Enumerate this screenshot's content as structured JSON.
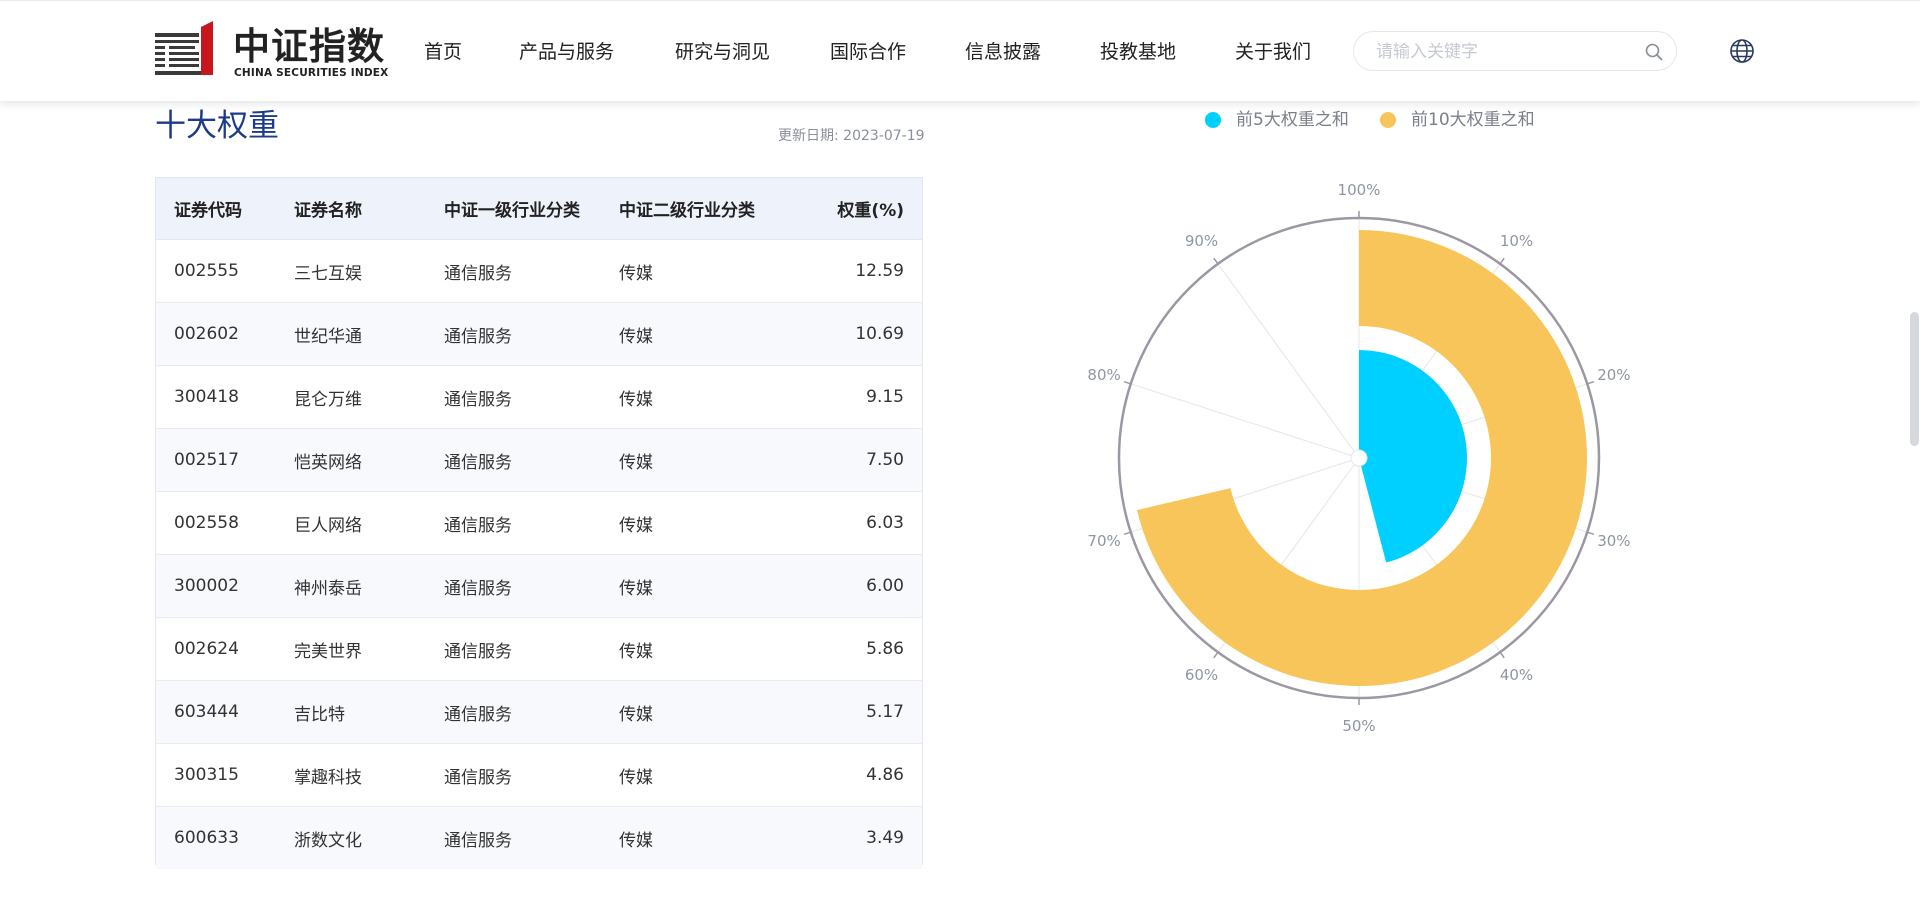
{
  "header": {
    "logo": {
      "cn": "中证指数",
      "en": "CHINA SECURITIES INDEX"
    },
    "nav": [
      "首页",
      "产品与服务",
      "研究与洞见",
      "国际合作",
      "信息披露",
      "投教基地",
      "关于我们"
    ],
    "search": {
      "placeholder": "请输入关键字",
      "value": ""
    },
    "icons": {
      "search": "search-icon",
      "language": "globe-icon"
    }
  },
  "section": {
    "title": "十大权重",
    "update_date": "更新日期: 2023-07-19"
  },
  "table": {
    "headers": [
      "证券代码",
      "证券名称",
      "中证一级行业分类",
      "中证二级行业分类",
      "权重(%)"
    ],
    "rows": [
      [
        "002555",
        "三七互娱",
        "通信服务",
        "传媒",
        "12.59"
      ],
      [
        "002602",
        "世纪华通",
        "通信服务",
        "传媒",
        "10.69"
      ],
      [
        "300418",
        "昆仑万维",
        "通信服务",
        "传媒",
        "9.15"
      ],
      [
        "002517",
        "恺英网络",
        "通信服务",
        "传媒",
        "7.50"
      ],
      [
        "002558",
        "巨人网络",
        "通信服务",
        "传媒",
        "6.03"
      ],
      [
        "300002",
        "神州泰岳",
        "通信服务",
        "传媒",
        "6.00"
      ],
      [
        "002624",
        "完美世界",
        "通信服务",
        "传媒",
        "5.86"
      ],
      [
        "603444",
        "吉比特",
        "通信服务",
        "传媒",
        "5.17"
      ],
      [
        "300315",
        "掌趣科技",
        "通信服务",
        "传媒",
        "4.86"
      ],
      [
        "600633",
        "浙数文化",
        "通信服务",
        "传媒",
        "3.49"
      ]
    ]
  },
  "chart_data": {
    "type": "polar-bar",
    "angle_ticks": [
      "100%",
      "10%",
      "20%",
      "30%",
      "40%",
      "50%",
      "60%",
      "70%",
      "80%",
      "90%"
    ],
    "angle_range": [
      0,
      100
    ],
    "series": [
      {
        "name": "前5大权重之和",
        "value": 45.96,
        "color": "#00d0ff"
      },
      {
        "name": "前10大权重之和",
        "value": 71.34,
        "color": "#f8c55a"
      }
    ],
    "legend_position": "top"
  },
  "colors": {
    "title": "#1d3b8a",
    "header_row": "#edf2fb",
    "axis": "#9b97a3"
  }
}
